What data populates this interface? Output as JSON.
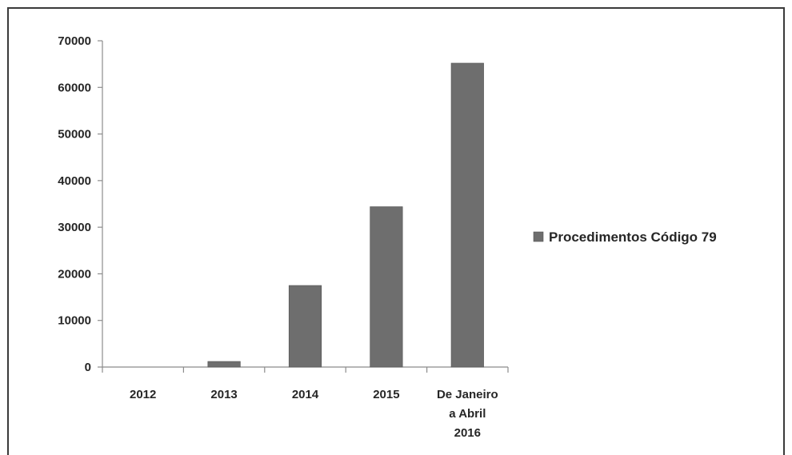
{
  "chart_data": {
    "type": "bar",
    "title": "",
    "xlabel": "",
    "ylabel": "",
    "categories": [
      [
        "2012"
      ],
      [
        "2013"
      ],
      [
        "2014"
      ],
      [
        "2015"
      ],
      [
        "De Janeiro",
        "a Abril",
        "2016"
      ]
    ],
    "series": [
      {
        "name": "Procedimentos Código 79",
        "values": [
          0,
          1200,
          17500,
          34400,
          65200
        ],
        "color": "#6e6e6e"
      }
    ],
    "ylim": [
      0,
      70000
    ],
    "yticks": [
      0,
      10000,
      20000,
      30000,
      40000,
      50000,
      60000,
      70000
    ],
    "grid": false,
    "legend_position": "right"
  },
  "colors": {
    "frame_border": "#3a3a3a",
    "axis": "#8c8c8c",
    "bar": "#6e6e6e",
    "bar_edge": "#555555"
  }
}
